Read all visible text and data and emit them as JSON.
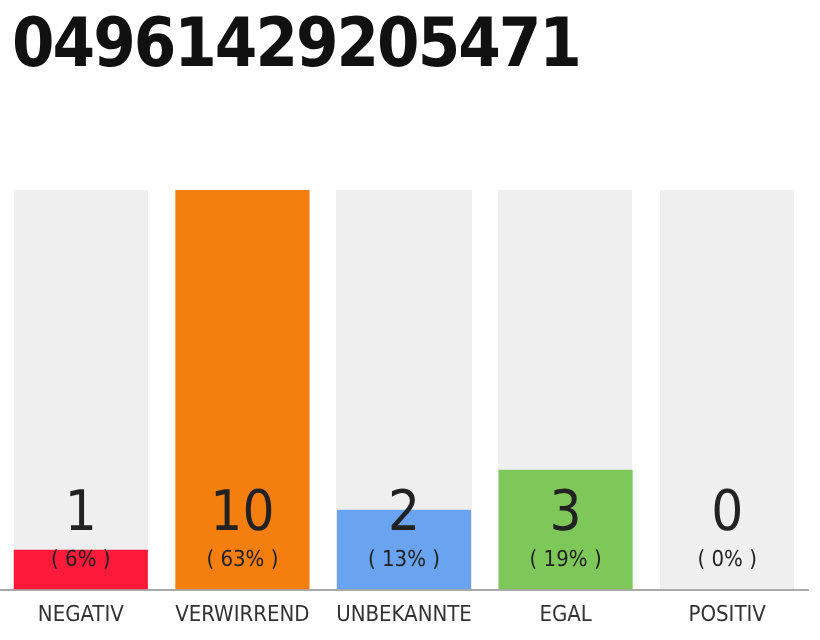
{
  "chart_data": {
    "type": "bar",
    "title": "04961429205471",
    "categories": [
      "NEGATIV",
      "VERWIRREND",
      "UNBEKANNTE",
      "EGAL",
      "POSITIV"
    ],
    "values": [
      1,
      10,
      2,
      3,
      0
    ],
    "colors": [
      "#ff1a3a",
      "#f47f0e",
      "#6aa3ef",
      "#7ec85a",
      "#cccccc"
    ],
    "value_labels": [
      "1",
      "10",
      "2",
      "3",
      "0"
    ],
    "annotations": [
      "( 6% )",
      "( 63% )",
      "( 13% )",
      "( 19% )",
      "( 0% )"
    ],
    "tick_labels": "x",
    "grid": false,
    "legend": false
  }
}
